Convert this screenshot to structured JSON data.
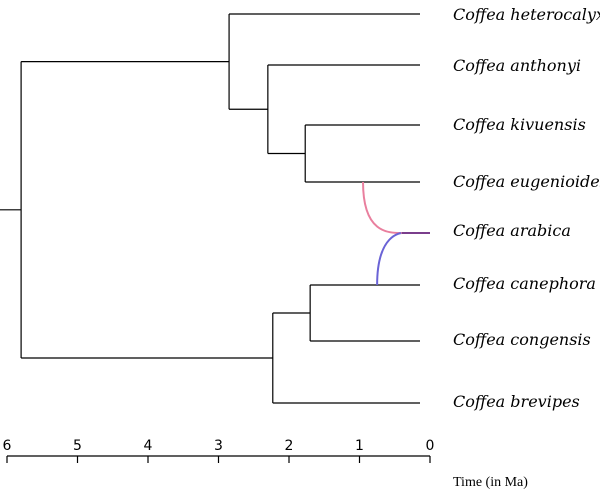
{
  "axis": {
    "title": "Time (in Ma)",
    "range": [
      6,
      0
    ],
    "ticks": [
      "6",
      "5",
      "4",
      "3",
      "2",
      "1",
      "0"
    ]
  },
  "taxa": [
    "Coffea heterocalyx",
    "Coffea anthonyi",
    "Coffea kivuensis",
    "Coffea eugenioides",
    "Coffea arabica",
    "Coffea canephora",
    "Coffea congensis",
    "Coffea brevipes"
  ],
  "nodes_age_ma": {
    "root": 5.8,
    "het_ant_kiv_eug": 2.85,
    "ant_kiv_eug": 2.3,
    "kiv_eug": 1.77,
    "can_con_bre": 2.23,
    "can_con": 1.7
  },
  "hybridization": {
    "hybrid": "Coffea arabica",
    "parent_maternal": "Coffea eugenioides",
    "parent_paternal": "Coffea canephora",
    "age_from_eugenioides_ma": 0.95,
    "age_from_canephora_ma": 0.75,
    "maternal_color": "#e97f9e",
    "paternal_color": "#6a63d6",
    "hybrid_color": "#7a3e8c"
  }
}
